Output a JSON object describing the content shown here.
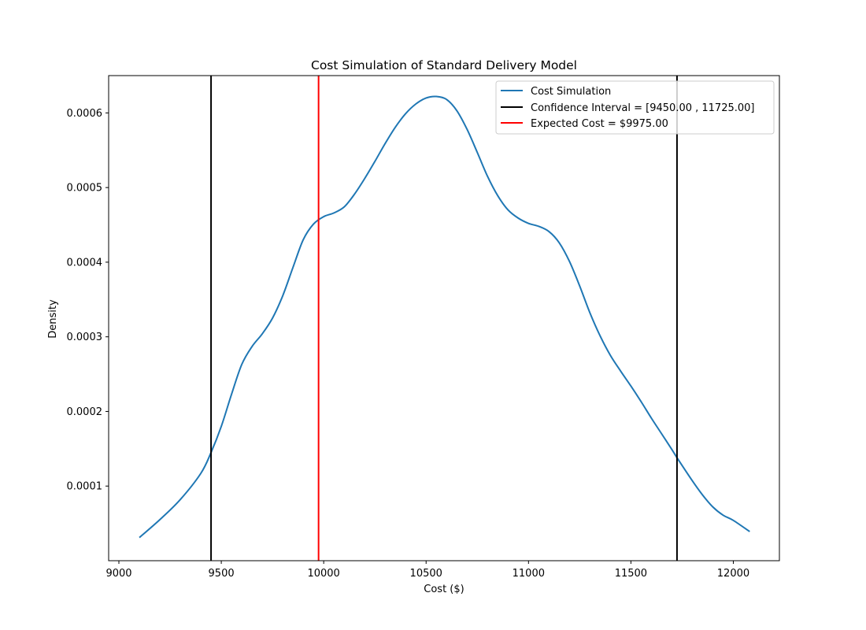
{
  "chart_data": {
    "type": "line",
    "title": "Cost Simulation of Standard Delivery Model",
    "xlabel": "Cost ($)",
    "ylabel": "Density",
    "xlim": [
      8950,
      12225
    ],
    "ylim": [
      0.0,
      0.00065
    ],
    "xticks": [
      9000,
      9500,
      10000,
      10500,
      11000,
      11500,
      12000
    ],
    "yticks": [
      0.0001,
      0.0002,
      0.0003,
      0.0004,
      0.0005,
      0.0006
    ],
    "grid": false,
    "legend_position": "top-right",
    "series": [
      {
        "name": "Cost Simulation",
        "color": "#1f77b4",
        "x": [
          9100,
          9200,
          9300,
          9400,
          9450,
          9500,
          9550,
          9600,
          9650,
          9700,
          9750,
          9800,
          9850,
          9900,
          9950,
          10000,
          10050,
          10100,
          10150,
          10200,
          10250,
          10300,
          10350,
          10400,
          10450,
          10500,
          10550,
          10600,
          10650,
          10700,
          10750,
          10800,
          10850,
          10900,
          10950,
          11000,
          11050,
          11100,
          11150,
          11200,
          11250,
          11300,
          11350,
          11400,
          11450,
          11500,
          11550,
          11600,
          11650,
          11700,
          11725,
          11800,
          11850,
          11900,
          11950,
          12000,
          12080
        ],
        "y": [
          3.1e-05,
          5.5e-05,
          8.2e-05,
          0.000117,
          0.000145,
          0.00018,
          0.000223,
          0.000263,
          0.000287,
          0.000304,
          0.000325,
          0.000355,
          0.000393,
          0.00043,
          0.000451,
          0.000461,
          0.000466,
          0.000474,
          0.000491,
          0.000512,
          0.000535,
          0.000559,
          0.000581,
          0.000599,
          0.000612,
          0.00062,
          0.000622,
          0.000618,
          0.000603,
          0.000578,
          0.000547,
          0.000515,
          0.000489,
          0.00047,
          0.000459,
          0.000452,
          0.000448,
          0.000441,
          0.000426,
          0.000401,
          0.000368,
          0.000332,
          0.000301,
          0.000275,
          0.000254,
          0.000234,
          0.000213,
          0.000191,
          0.00017,
          0.000149,
          0.000138,
          0.000107,
          8.8e-05,
          7.2e-05,
          6.1e-05,
          5.4e-05,
          3.9e-05
        ]
      }
    ],
    "vlines": [
      {
        "name": "Confidence Interval = [9450.00 , 11725.00]",
        "color": "#000000",
        "x": [
          9450,
          11725
        ]
      },
      {
        "name": "Expected Cost = $9975.00",
        "color": "#ff0000",
        "x": [
          9975
        ]
      }
    ]
  }
}
